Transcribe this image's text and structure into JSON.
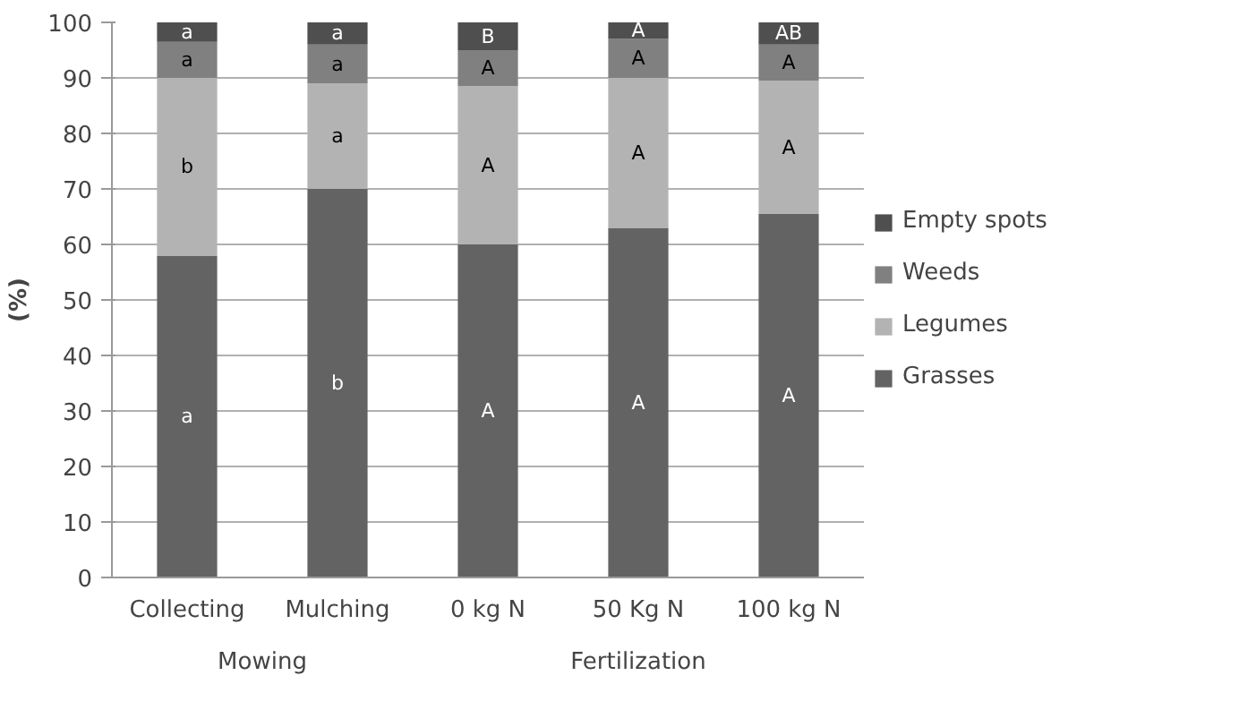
{
  "chart_data": {
    "type": "bar",
    "stacked": true,
    "ylabel": "(%)",
    "categories": [
      "Collecting",
      "Mulching",
      "0 kg N",
      "50 Kg N",
      "100 kg N"
    ],
    "series": [
      {
        "name": "Grasses",
        "color": "#636363",
        "values": [
          58,
          70,
          60,
          63,
          65.5
        ],
        "value_labels": [
          "a",
          "b",
          "A",
          "A",
          "A"
        ]
      },
      {
        "name": "Legumes",
        "color": "#b3b3b3",
        "values": [
          32,
          19,
          28.5,
          27,
          24
        ],
        "value_labels": [
          "b",
          "a",
          "A",
          "A",
          "A"
        ]
      },
      {
        "name": "Weeds",
        "color": "#808080",
        "values": [
          6.5,
          7,
          6.5,
          7,
          6.5
        ],
        "value_labels": [
          "a",
          "a",
          "A",
          "A",
          "A"
        ]
      },
      {
        "name": "Empty spots",
        "color": "#4f4f4f",
        "values": [
          3.5,
          4,
          5,
          3,
          4
        ],
        "value_labels": [
          "a",
          "a",
          "B",
          "A",
          "AB"
        ]
      }
    ],
    "annotations": [
      "Mowing",
      "Fertilization"
    ],
    "ylim": [
      0,
      100
    ],
    "yticks": [
      0,
      10,
      20,
      30,
      40,
      50,
      60,
      70,
      80,
      90,
      100
    ],
    "grid": "y",
    "legend": "right"
  }
}
